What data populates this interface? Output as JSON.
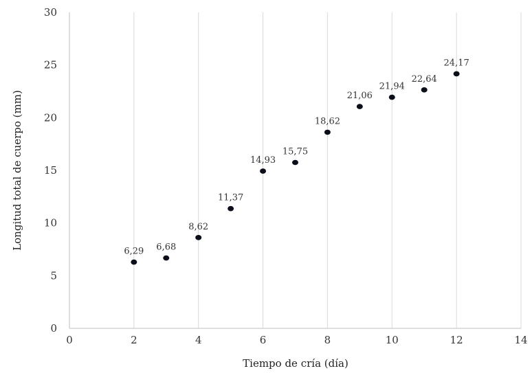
{
  "chart_data": {
    "type": "scatter",
    "xlabel": "Tiempo de cría (día)",
    "ylabel": "Longitud total de cuerpo (mm)",
    "xlim": [
      0,
      14
    ],
    "ylim": [
      0,
      30
    ],
    "xticks": [
      0,
      2,
      4,
      6,
      8,
      10,
      12,
      14
    ],
    "yticks": [
      0,
      5,
      10,
      15,
      20,
      25,
      30
    ],
    "grid": "vertical",
    "x": [
      2,
      3,
      4,
      5,
      6,
      7,
      8,
      9,
      10,
      11,
      12
    ],
    "y": [
      6.29,
      6.68,
      8.62,
      11.37,
      14.93,
      15.75,
      18.62,
      21.06,
      21.94,
      22.64,
      24.17
    ],
    "data_labels": [
      "6,29",
      "6,68",
      "8,62",
      "11,37",
      "14,93",
      "15,75",
      "18,62",
      "21,06",
      "21,94",
      "22,64",
      "24,17"
    ],
    "marker_color": "#0b0f1a"
  }
}
